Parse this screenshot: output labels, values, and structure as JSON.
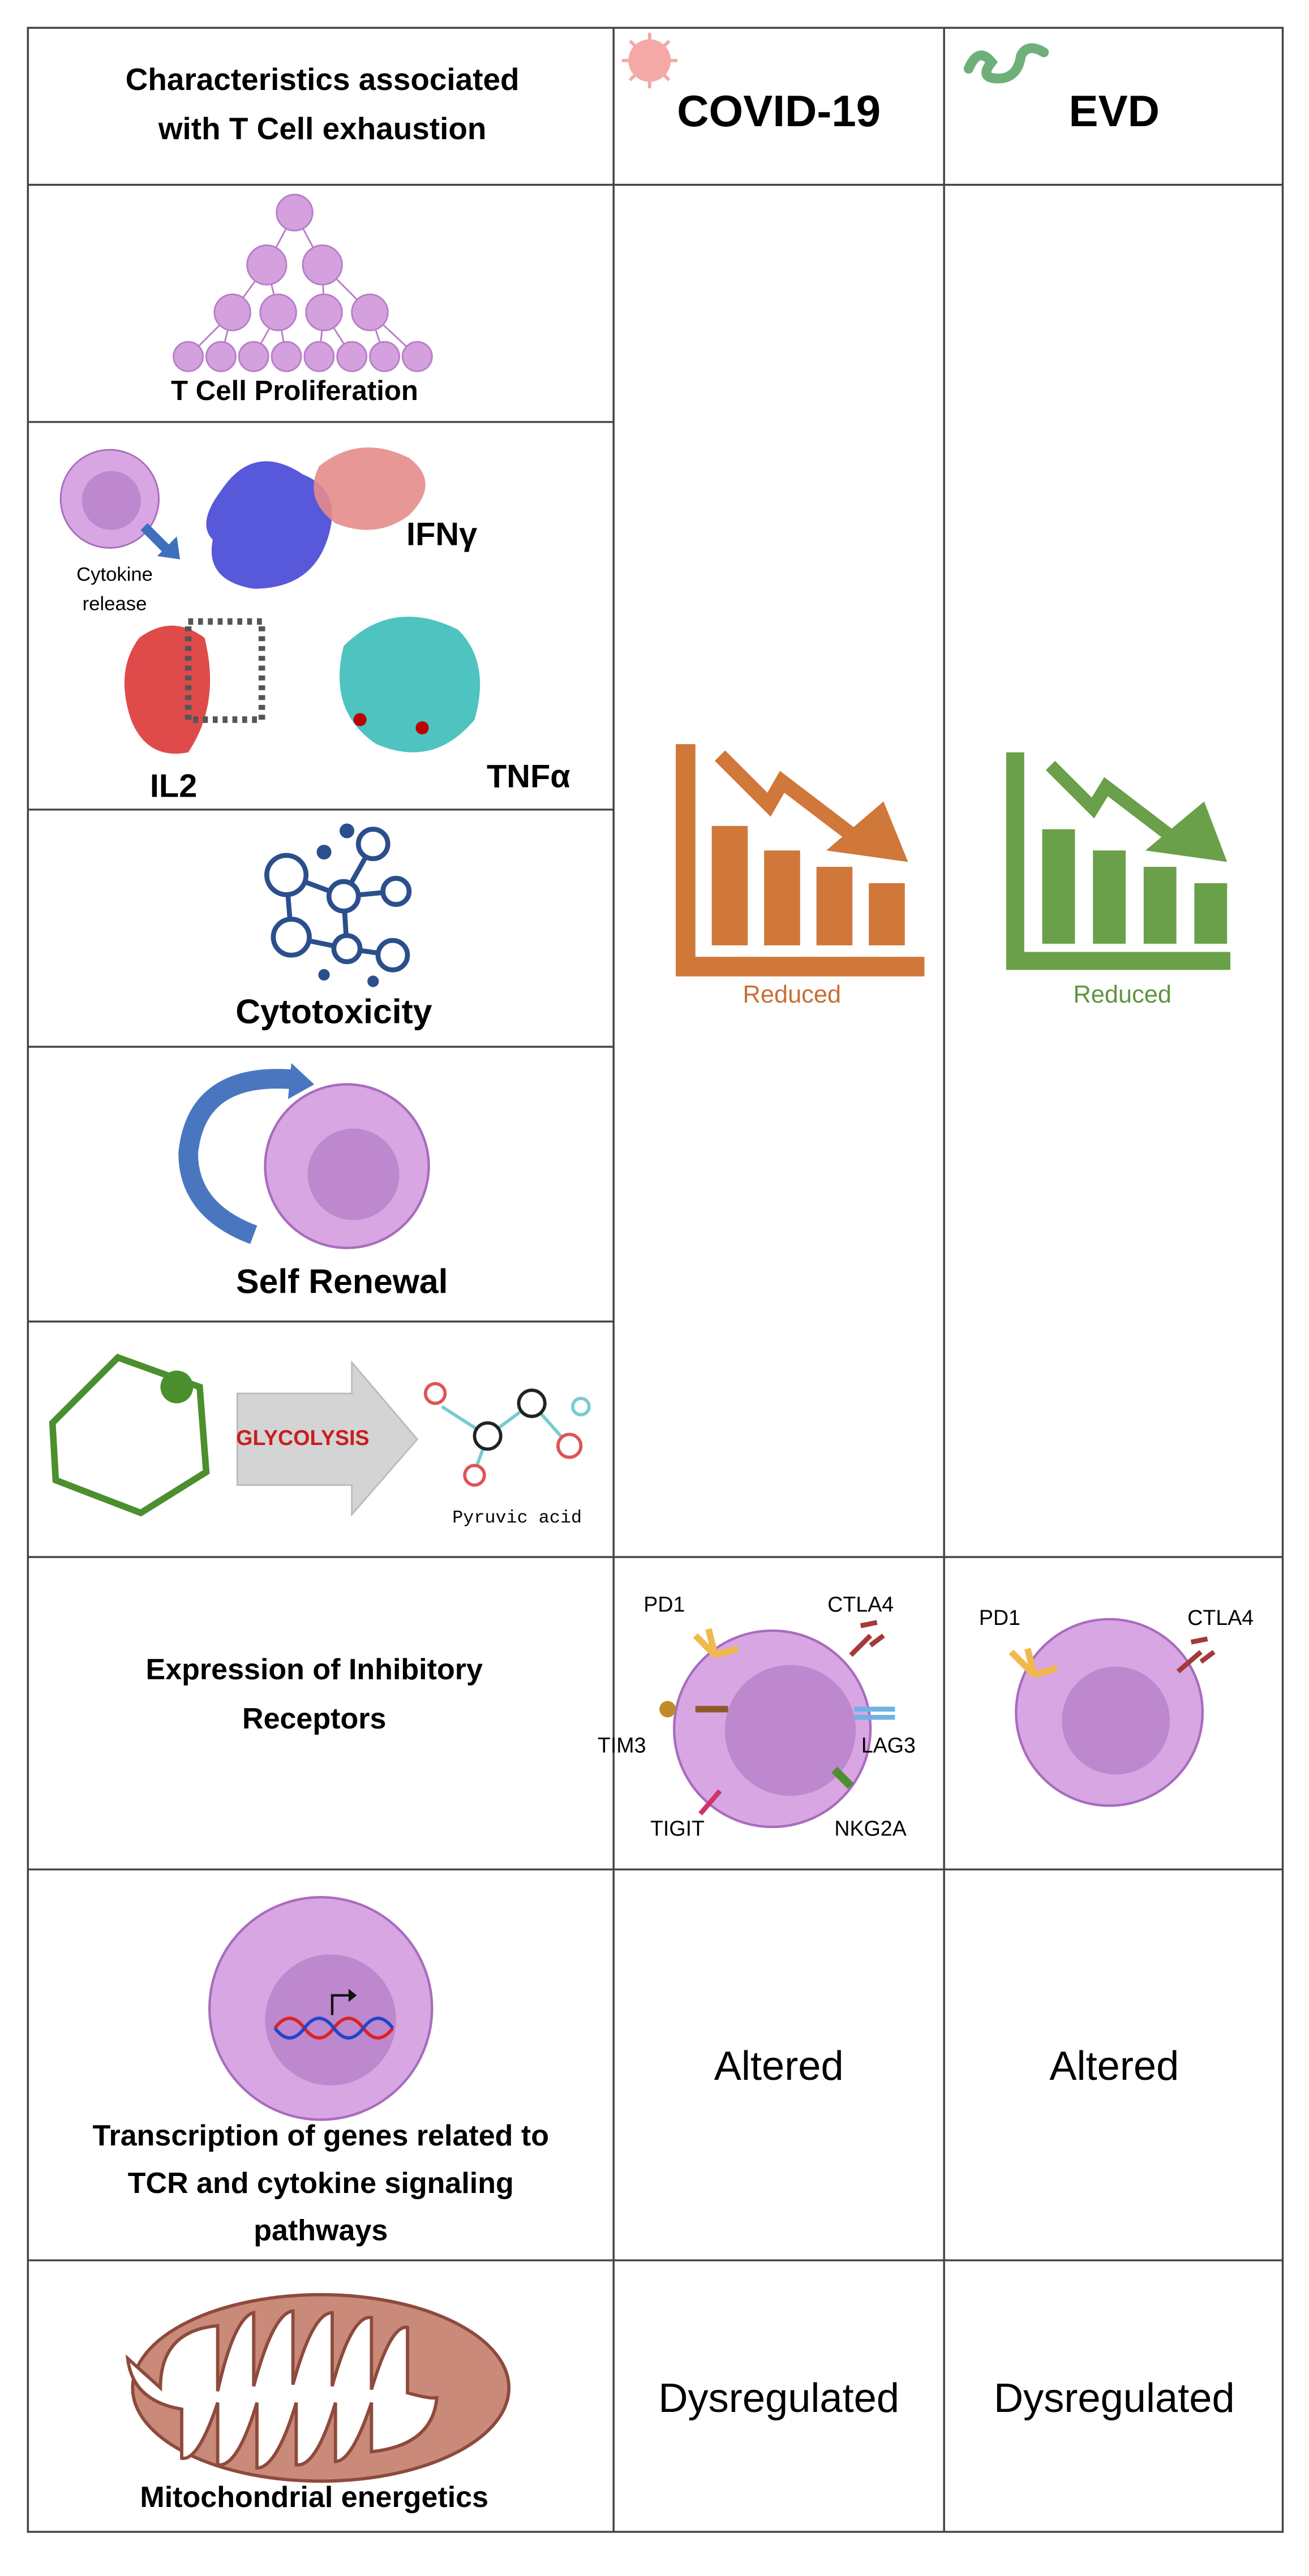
{
  "header": {
    "characteristic_lines": [
      "Characteristics associated",
      "with T Cell exhaustion"
    ],
    "columns": [
      "COVID-19",
      "EVD"
    ]
  },
  "rows": [
    {
      "label_lines": [
        "T Cell Proliferation"
      ]
    },
    {
      "cytokine_lines": [
        "Cytokine",
        "release"
      ],
      "molecules": [
        "IFNγ",
        "IL2",
        "TNFα"
      ]
    },
    {
      "label_lines": [
        "Cytotoxicity"
      ]
    },
    {
      "label_lines": [
        "Self Renewal"
      ]
    },
    {
      "process": "GLYCOLYSIS",
      "product": "Pyruvic acid"
    }
  ],
  "reduced": [
    "Reduced",
    "Reduced"
  ],
  "inhibitory": {
    "label_lines": [
      "Expression of Inhibitory",
      "Receptors"
    ],
    "covid_receptors": [
      "PD1",
      "CTLA4",
      "TIM3",
      "LAG3",
      "TIGIT",
      "NKG2A"
    ],
    "evd_receptors": [
      "PD1",
      "CTLA4"
    ]
  },
  "transcription": {
    "label_lines": [
      "Transcription of genes related to",
      "TCR and cytokine signaling",
      "pathways"
    ],
    "values": [
      "Altered",
      "Altered"
    ]
  },
  "mitochondria": {
    "label_lines": [
      "Mitochondrial energetics"
    ],
    "values": [
      "Dysregulated",
      "Dysregulated"
    ]
  }
}
